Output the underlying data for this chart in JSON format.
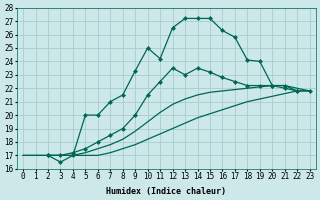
{
  "xlabel": "Humidex (Indice chaleur)",
  "xlim_min": -0.5,
  "xlim_max": 23.5,
  "ylim_min": 16,
  "ylim_max": 28,
  "background_color": "#cce8e8",
  "line_color": "#006655",
  "grid_color": "#aacccc",
  "line1_x": [
    0,
    1,
    2,
    3,
    4,
    5,
    6,
    7,
    8,
    9,
    10,
    11,
    12,
    13,
    14,
    15,
    16,
    17,
    18,
    19,
    20,
    21,
    22,
    23
  ],
  "line1_y": [
    17,
    17,
    17,
    17,
    17,
    17,
    17,
    17.2,
    17.5,
    17.8,
    18.2,
    18.6,
    19.0,
    19.4,
    19.8,
    20.1,
    20.4,
    20.7,
    21.0,
    21.2,
    21.4,
    21.6,
    21.8,
    21.8
  ],
  "line2_x": [
    0,
    1,
    2,
    3,
    4,
    5,
    6,
    7,
    8,
    9,
    10,
    11,
    12,
    13,
    14,
    15,
    16,
    17,
    18,
    19,
    20,
    21,
    22,
    23
  ],
  "line2_y": [
    17,
    17,
    17,
    17,
    17,
    17.2,
    17.5,
    17.8,
    18.2,
    18.8,
    19.5,
    20.2,
    20.8,
    21.2,
    21.5,
    21.7,
    21.8,
    21.9,
    22.0,
    22.1,
    22.2,
    22.2,
    22.0,
    21.8
  ],
  "line3_x": [
    2,
    3,
    4,
    5,
    6,
    7,
    8,
    9,
    10,
    11,
    12,
    13,
    14,
    15,
    16,
    17,
    18,
    19,
    20,
    21,
    22,
    23
  ],
  "line3_y": [
    17,
    17,
    17.2,
    17.5,
    18,
    18.5,
    19,
    20,
    21.5,
    22.5,
    23.5,
    23.0,
    23.5,
    23.2,
    22.8,
    22.5,
    22.2,
    22.2,
    22.2,
    22.0,
    21.8,
    21.8
  ],
  "line4_x": [
    2,
    3,
    4,
    5,
    6,
    7,
    8,
    9,
    10,
    11,
    12,
    13,
    14,
    15,
    16,
    17,
    18,
    19,
    20,
    21,
    22
  ],
  "line4_y": [
    17,
    16.5,
    17,
    20,
    20,
    21,
    21.5,
    23.3,
    25.0,
    24.2,
    26.5,
    27.2,
    27.2,
    27.2,
    26.3,
    25.8,
    24.1,
    24.0,
    22.2,
    22.2,
    21.8
  ],
  "xticks": [
    0,
    1,
    2,
    3,
    4,
    5,
    6,
    7,
    8,
    9,
    10,
    11,
    12,
    13,
    14,
    15,
    16,
    17,
    18,
    19,
    20,
    21,
    22,
    23
  ],
  "yticks": [
    16,
    17,
    18,
    19,
    20,
    21,
    22,
    23,
    24,
    25,
    26,
    27,
    28
  ],
  "tick_fontsize": 5.5,
  "xlabel_fontsize": 6,
  "linewidth": 0.9,
  "markersize": 2.5
}
